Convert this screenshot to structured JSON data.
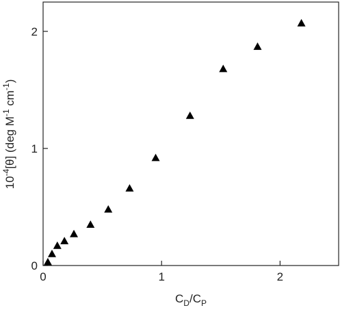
{
  "chart_data": {
    "type": "scatter",
    "xlabel": [
      "C",
      "D",
      "/C",
      "P"
    ],
    "ylabel": [
      "10",
      "-4",
      "[θ] (deg M",
      "-1",
      " cm",
      "-1",
      ")"
    ],
    "x": [
      0.04,
      0.075,
      0.12,
      0.18,
      0.26,
      0.4,
      0.55,
      0.73,
      0.95,
      1.24,
      1.52,
      1.81,
      2.18
    ],
    "series": [
      {
        "color": "#000000",
        "marker": "triangle",
        "values": [
          0.03,
          0.1,
          0.17,
          0.21,
          0.27,
          0.35,
          0.48,
          0.66,
          0.92,
          1.28,
          1.68,
          1.87,
          2.07
        ]
      }
    ],
    "xlim": [
      0,
      2.5
    ],
    "xticks": [
      0,
      1,
      2
    ],
    "ylim": [
      0,
      2.25
    ],
    "yticks": [
      0,
      1,
      2
    ]
  }
}
